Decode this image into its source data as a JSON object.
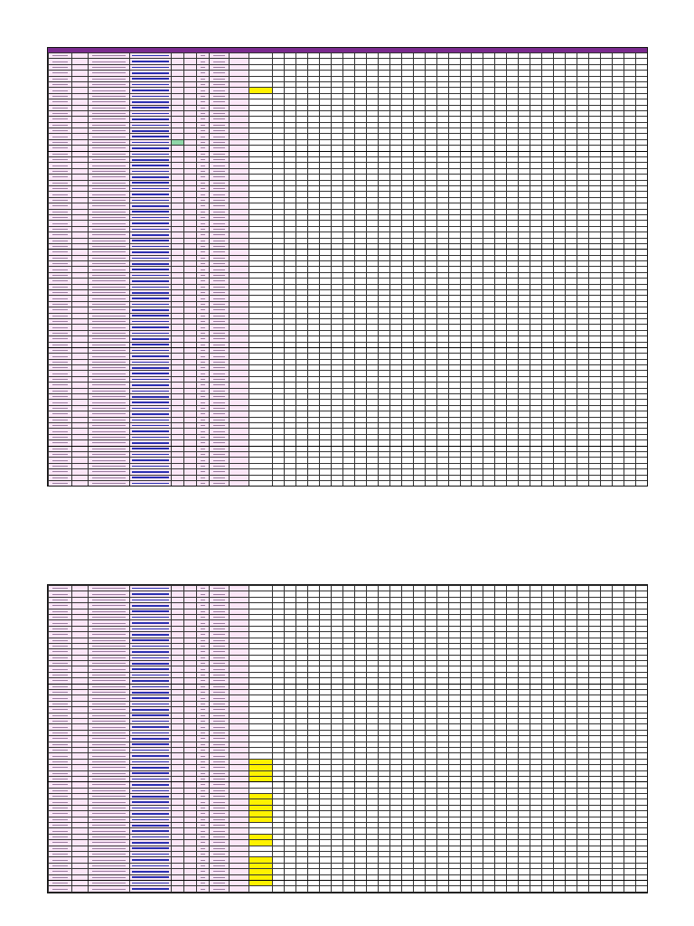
{
  "document": {
    "pages": [
      {
        "id": "top",
        "rows": 86,
        "link_col": 4,
        "yellow_rows": [
          6
        ],
        "green_rows": [
          15
        ]
      },
      {
        "id": "bottom",
        "rows": 63,
        "link_col": 4,
        "yellow_rows": [
          30,
          31,
          32,
          33,
          36,
          37,
          38,
          39,
          40,
          43,
          44,
          47,
          48,
          49,
          50,
          51,
          55,
          56,
          57,
          59
        ],
        "green_rows": []
      }
    ],
    "columns": 42,
    "pink_cols": 9,
    "thick_col": 19
  },
  "colors": {
    "header_band": "#7a2a8e",
    "row_fill": "#fbe6f7",
    "link": "#2b2fb0",
    "highlight_yellow": "#fff200",
    "highlight_green": "#8fd6a8"
  }
}
